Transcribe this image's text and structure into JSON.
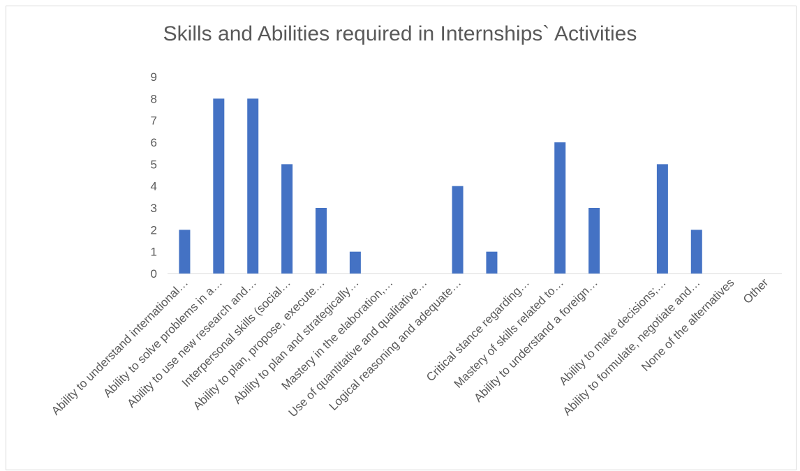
{
  "chart_data": {
    "type": "bar",
    "title": "Skills and Abilities required in Internships` Activities",
    "xlabel": "",
    "ylabel": "",
    "ylim": [
      0,
      9
    ],
    "yticks": [
      0,
      1,
      2,
      3,
      4,
      5,
      6,
      7,
      8,
      9
    ],
    "categories": [
      "Ability to understand international…",
      "Ability to solve problems in a…",
      "Ability to use new research and…",
      "Interpersonal skills (social…",
      "Ability to plan, propose, execute…",
      "Ability to plan and strategically…",
      "Mastery in the elaboration,…",
      "Use of quantitative and qualitative…",
      "Logical reasoning and adequate…",
      "",
      "Critical stance regarding…",
      "Mastery of skills related to…",
      "Ability to understand a foreign…",
      "",
      "Ability to make decisions;…",
      "Ability to formulate, negotiate and…",
      "None of the alternatives",
      "Other"
    ],
    "values": [
      2,
      8,
      8,
      5,
      3,
      1,
      0,
      0,
      4,
      1,
      0,
      6,
      3,
      0,
      5,
      2,
      0,
      0
    ],
    "bar_color": "#4472c4",
    "grid": false,
    "legend": "none"
  }
}
